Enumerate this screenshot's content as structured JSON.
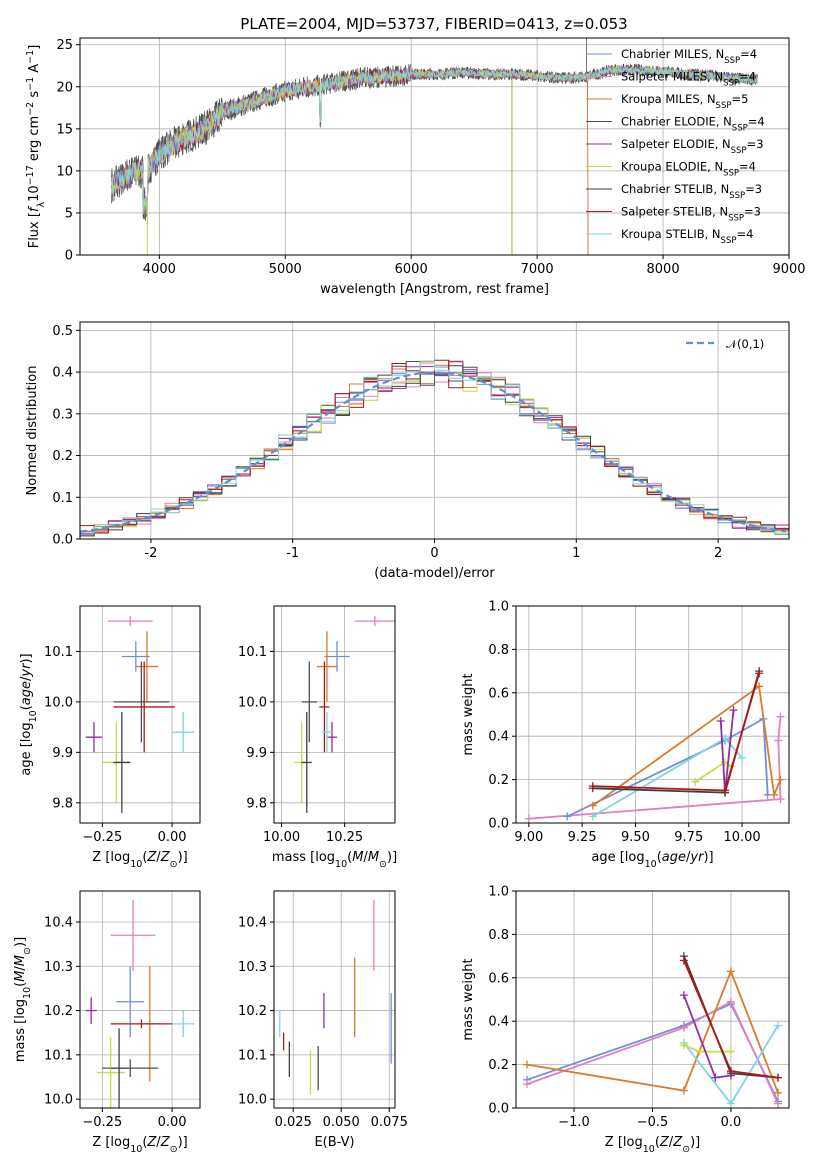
{
  "chart_data": [
    {
      "id": "spectrum",
      "type": "line",
      "title": "PLATE=2004, MJD=53737, FIBERID=0413, z=0.053",
      "xlabel": "wavelength [Angstrom, rest frame]",
      "ylabel": "Flux [fλ10⁻¹⁷ erg cm⁻² s⁻¹ A⁻¹]",
      "xlim": [
        3370,
        9000
      ],
      "ylim": [
        0,
        25.8
      ],
      "xticks": [
        4000,
        5000,
        6000,
        7000,
        8000,
        9000
      ],
      "yticks": [
        0,
        5,
        10,
        15,
        20,
        25
      ],
      "legend_position": "right",
      "legend": [
        {
          "label": "Chabrier MILES, N",
          "n": "4",
          "color": "#6f8fd8"
        },
        {
          "label": "Salpeter MILES, N",
          "n": "4",
          "color": "#e27fbd"
        },
        {
          "label": "Kroupa MILES, N",
          "n": "5",
          "color": "#d97a2c"
        },
        {
          "label": "Chabrier ELODIE, N",
          "n": "4",
          "color": "#4f4f4f"
        },
        {
          "label": "Salpeter ELODIE, N",
          "n": "3",
          "color": "#8e2fa8"
        },
        {
          "label": "Kroupa ELODIE, N",
          "n": "4",
          "color": "#c9d94a"
        },
        {
          "label": "Chabrier STELIB, N",
          "n": "3",
          "color": "#404040"
        },
        {
          "label": "Salpeter STELIB, N",
          "n": "3",
          "color": "#b01818"
        },
        {
          "label": "Kroupa STELIB, N",
          "n": "4",
          "color": "#7fd6de"
        }
      ],
      "continuum": [
        [
          3600,
          8
        ],
        [
          3700,
          9
        ],
        [
          3800,
          10
        ],
        [
          3900,
          10
        ],
        [
          4000,
          12
        ],
        [
          4100,
          13
        ],
        [
          4200,
          14
        ],
        [
          4300,
          14.5
        ],
        [
          4400,
          15.5
        ],
        [
          4500,
          17
        ],
        [
          4600,
          17.5
        ],
        [
          4700,
          18
        ],
        [
          4800,
          18.5
        ],
        [
          4900,
          19
        ],
        [
          5000,
          19.5
        ],
        [
          5200,
          20
        ],
        [
          5400,
          20.5
        ],
        [
          5600,
          21
        ],
        [
          5800,
          21.2
        ],
        [
          6000,
          21.5
        ],
        [
          6200,
          21.5
        ],
        [
          6400,
          21.7
        ],
        [
          6600,
          21.5
        ],
        [
          6800,
          21.5
        ],
        [
          7000,
          21.3
        ],
        [
          7200,
          21
        ],
        [
          7400,
          21.2
        ],
        [
          7600,
          22
        ],
        [
          7800,
          22
        ],
        [
          8000,
          21.8
        ],
        [
          8200,
          21.5
        ],
        [
          8400,
          21.3
        ],
        [
          8600,
          21
        ],
        [
          8750,
          20.8
        ]
      ]
    },
    {
      "id": "residuals",
      "type": "line",
      "xlabel": "(data-model)/error",
      "ylabel": "Normed distribution",
      "xlim": [
        -2.5,
        2.5
      ],
      "ylim": [
        0,
        0.52
      ],
      "xticks": [
        -2,
        -1,
        0,
        1,
        2
      ],
      "yticks": [
        0.0,
        0.1,
        0.2,
        0.3,
        0.4,
        0.5
      ],
      "legend": [
        {
          "label": "𝒩(0,1)",
          "color": "#5b8fd6",
          "style": "dashed"
        }
      ],
      "legend_position": "top-right",
      "histogram_colors": [
        "#6f8fd8",
        "#e27fbd",
        "#d97a2c",
        "#4f4f4f",
        "#8e2fa8",
        "#c9d94a",
        "#404040",
        "#b01818",
        "#7fd6de"
      ],
      "bin_width": 0.1
    },
    {
      "id": "age_vs_Z",
      "type": "scatter",
      "xlabel": "Z [log₁₀(Z/Z⊙)]",
      "ylabel": "age  [log₁₀(age/yr)]",
      "xlim": [
        -0.33,
        0.1
      ],
      "ylim": [
        9.76,
        10.19
      ],
      "xticks": [
        -0.25,
        0.0
      ],
      "xtick_labels": [
        "−0.25",
        "0.00"
      ],
      "yticks": [
        9.8,
        9.9,
        10.0,
        10.1
      ],
      "points": [
        {
          "x": -0.13,
          "y": 10.09,
          "xerr": 0.05,
          "yerr": 0.03,
          "color": "#6f8fd8"
        },
        {
          "x": -0.15,
          "y": 10.16,
          "xerr": 0.08,
          "yerr": 0.01,
          "color": "#e27fbd"
        },
        {
          "x": -0.09,
          "y": 10.07,
          "xerr": 0.04,
          "yerr": 0.07,
          "color": "#d97a2c"
        },
        {
          "x": -0.11,
          "y": 10.0,
          "xerr": 0.1,
          "yerr": 0.08,
          "color": "#4f4f4f"
        },
        {
          "x": -0.28,
          "y": 9.93,
          "xerr": 0.03,
          "yerr": 0.03,
          "color": "#8e2fa8"
        },
        {
          "x": -0.2,
          "y": 9.88,
          "xerr": 0.05,
          "yerr": 0.08,
          "color": "#c9d94a"
        },
        {
          "x": -0.18,
          "y": 9.88,
          "xerr": 0.03,
          "yerr": 0.1,
          "color": "#404040"
        },
        {
          "x": -0.1,
          "y": 9.99,
          "xerr": 0.11,
          "yerr": 0.09,
          "color": "#b01818"
        },
        {
          "x": 0.04,
          "y": 9.94,
          "xerr": 0.04,
          "yerr": 0.04,
          "color": "#7fd6de"
        }
      ]
    },
    {
      "id": "age_vs_mass",
      "type": "scatter",
      "xlabel": "mass [log₁₀(M/M⊙)]",
      "ylabel": "",
      "xlim": [
        9.97,
        10.45
      ],
      "ylim": [
        9.76,
        10.19
      ],
      "xticks": [
        10.0,
        10.25
      ],
      "xtick_labels": [
        "10.00",
        "10.25"
      ],
      "yticks": [
        9.8,
        9.9,
        10.0,
        10.1
      ],
      "points": [
        {
          "x": 10.22,
          "y": 10.09,
          "xerr": 0.05,
          "yerr": 0.03,
          "color": "#6f8fd8"
        },
        {
          "x": 10.37,
          "y": 10.16,
          "xerr": 0.08,
          "yerr": 0.01,
          "color": "#e27fbd"
        },
        {
          "x": 10.18,
          "y": 10.07,
          "xerr": 0.04,
          "yerr": 0.07,
          "color": "#d97a2c"
        },
        {
          "x": 10.11,
          "y": 10.0,
          "xerr": 0.03,
          "yerr": 0.08,
          "color": "#4f4f4f"
        },
        {
          "x": 10.2,
          "y": 9.93,
          "xerr": 0.02,
          "yerr": 0.03,
          "color": "#8e2fa8"
        },
        {
          "x": 10.08,
          "y": 9.88,
          "xerr": 0.03,
          "yerr": 0.08,
          "color": "#c9d94a"
        },
        {
          "x": 10.1,
          "y": 9.88,
          "xerr": 0.02,
          "yerr": 0.1,
          "color": "#404040"
        },
        {
          "x": 10.17,
          "y": 9.99,
          "xerr": 0.02,
          "yerr": 0.09,
          "color": "#b01818"
        },
        {
          "x": 10.18,
          "y": 9.94,
          "xerr": 0.02,
          "yerr": 0.04,
          "color": "#7fd6de"
        }
      ]
    },
    {
      "id": "weight_vs_age",
      "type": "line",
      "xlabel": "age  [log₁₀(age/yr)]",
      "ylabel": "mass weight",
      "xlim": [
        8.94,
        10.22
      ],
      "ylim": [
        0,
        1
      ],
      "xticks": [
        9.0,
        9.25,
        9.5,
        9.75,
        10.0
      ],
      "xtick_labels": [
        "9.00",
        "9.25",
        "9.50",
        "9.75",
        "10.00"
      ],
      "yticks": [
        0.0,
        0.2,
        0.4,
        0.6,
        0.8,
        1.0
      ],
      "series": [
        {
          "color": "#e27fbd",
          "points": [
            [
              9.0,
              0.02
            ],
            [
              10.18,
              0.11
            ],
            [
              10.17,
              0.38
            ],
            [
              10.18,
              0.49
            ]
          ]
        },
        {
          "color": "#6f8fd8",
          "points": [
            [
              9.18,
              0.03
            ],
            [
              9.92,
              0.38
            ],
            [
              10.1,
              0.48
            ],
            [
              10.12,
              0.13
            ]
          ]
        },
        {
          "color": "#d97a2c",
          "points": [
            [
              9.3,
              0.08
            ],
            [
              10.08,
              0.63
            ],
            [
              10.15,
              0.13
            ],
            [
              10.18,
              0.2
            ]
          ]
        },
        {
          "color": "#7fd6de",
          "points": [
            [
              9.3,
              0.03
            ],
            [
              9.92,
              0.39
            ],
            [
              10.0,
              0.3
            ]
          ]
        },
        {
          "color": "#c9d94a",
          "points": [
            [
              9.78,
              0.19
            ],
            [
              9.92,
              0.28
            ],
            [
              9.95,
              0.26
            ]
          ]
        },
        {
          "color": "#8e2fa8",
          "points": [
            [
              9.9,
              0.47
            ],
            [
              9.92,
              0.14
            ],
            [
              9.96,
              0.52
            ]
          ]
        },
        {
          "color": "#404040",
          "points": [
            [
              9.3,
              0.16
            ],
            [
              9.92,
              0.14
            ],
            [
              10.08,
              0.7
            ]
          ]
        },
        {
          "color": "#b01818",
          "points": [
            [
              9.3,
              0.17
            ],
            [
              9.92,
              0.15
            ],
            [
              10.08,
              0.69
            ]
          ]
        }
      ]
    },
    {
      "id": "mass_vs_Z",
      "type": "scatter",
      "xlabel": "Z [log₁₀(Z/Z⊙)]",
      "ylabel": "mass [log₁₀(M/M⊙)]",
      "xlim": [
        -0.33,
        0.1
      ],
      "ylim": [
        9.98,
        10.47
      ],
      "xticks": [
        -0.25,
        0.0
      ],
      "xtick_labels": [
        "−0.25",
        "0.00"
      ],
      "yticks": [
        10.0,
        10.1,
        10.2,
        10.3,
        10.4
      ],
      "points": [
        {
          "x": -0.15,
          "y": 10.22,
          "xerr": 0.05,
          "yerr": 0.08,
          "color": "#6f8fd8"
        },
        {
          "x": -0.14,
          "y": 10.37,
          "xerr": 0.08,
          "yerr": 0.08,
          "color": "#e27fbd"
        },
        {
          "x": -0.08,
          "y": 10.17,
          "xerr": 0.04,
          "yerr": 0.13,
          "color": "#d97a2c"
        },
        {
          "x": -0.15,
          "y": 10.07,
          "xerr": 0.1,
          "yerr": 0.02,
          "color": "#4f4f4f"
        },
        {
          "x": -0.29,
          "y": 10.2,
          "xerr": 0.02,
          "yerr": 0.03,
          "color": "#8e2fa8"
        },
        {
          "x": -0.22,
          "y": 10.06,
          "xerr": 0.05,
          "yerr": 0.08,
          "color": "#c9d94a"
        },
        {
          "x": -0.19,
          "y": 10.07,
          "xerr": 0.03,
          "yerr": 0.09,
          "color": "#404040"
        },
        {
          "x": -0.11,
          "y": 10.17,
          "xerr": 0.11,
          "yerr": 0.01,
          "color": "#b01818"
        },
        {
          "x": 0.04,
          "y": 10.17,
          "xerr": 0.04,
          "yerr": 0.03,
          "color": "#7fd6de"
        }
      ]
    },
    {
      "id": "mass_vs_EBV",
      "type": "scatter",
      "xlabel": "E(B-V)",
      "ylabel": "",
      "xlim": [
        0.015,
        0.078
      ],
      "ylim": [
        9.98,
        10.47
      ],
      "xticks": [
        0.025,
        0.05,
        0.075
      ],
      "xtick_labels": [
        "0.025",
        "0.050",
        "0.075"
      ],
      "yticks": [
        10.0,
        10.1,
        10.2,
        10.3,
        10.4
      ],
      "points": [
        {
          "x": 0.076,
          "y": 10.16,
          "yerr": 0.08,
          "color": "#6f8fd8"
        },
        {
          "x": 0.067,
          "y": 10.37,
          "yerr": 0.08,
          "color": "#e27fbd"
        },
        {
          "x": 0.057,
          "y": 10.23,
          "yerr": 0.09,
          "color": "#d97a2c"
        },
        {
          "x": 0.038,
          "y": 10.07,
          "yerr": 0.05,
          "color": "#4f4f4f"
        },
        {
          "x": 0.041,
          "y": 10.2,
          "yerr": 0.04,
          "color": "#8e2fa8"
        },
        {
          "x": 0.034,
          "y": 10.06,
          "yerr": 0.05,
          "color": "#c9d94a"
        },
        {
          "x": 0.023,
          "y": 10.09,
          "yerr": 0.04,
          "color": "#404040"
        },
        {
          "x": 0.02,
          "y": 10.13,
          "yerr": 0.02,
          "color": "#b01818"
        },
        {
          "x": 0.018,
          "y": 10.17,
          "yerr": 0.03,
          "color": "#7fd6de"
        }
      ]
    },
    {
      "id": "weight_vs_Z",
      "type": "line",
      "xlabel": "Z [log₁₀(Z/Z⊙)]",
      "ylabel": "mass weight",
      "xlim": [
        -1.37,
        0.37
      ],
      "ylim": [
        0,
        1
      ],
      "xticks": [
        -1.0,
        -0.5,
        0.0
      ],
      "xtick_labels": [
        "−1.0",
        "−0.5",
        "0.0"
      ],
      "yticks": [
        0.0,
        0.2,
        0.4,
        0.6,
        0.8,
        1.0
      ],
      "series": [
        {
          "color": "#6f8fd8",
          "points": [
            [
              -1.3,
              0.13
            ],
            [
              -0.3,
              0.38
            ],
            [
              0.0,
              0.48
            ],
            [
              0.3,
              0.03
            ]
          ]
        },
        {
          "color": "#e27fbd",
          "points": [
            [
              -1.3,
              0.11
            ],
            [
              -0.3,
              0.37
            ],
            [
              0.0,
              0.49
            ],
            [
              0.3,
              0.02
            ]
          ]
        },
        {
          "color": "#d97a2c",
          "points": [
            [
              -1.3,
              0.2
            ],
            [
              -0.3,
              0.08
            ],
            [
              0.0,
              0.63
            ],
            [
              0.3,
              0.07
            ]
          ]
        },
        {
          "color": "#7fd6de",
          "points": [
            [
              -0.3,
              0.3
            ],
            [
              0.0,
              0.02
            ],
            [
              0.3,
              0.38
            ]
          ]
        },
        {
          "color": "#c9d94a",
          "points": [
            [
              -0.3,
              0.29
            ],
            [
              -0.2,
              0.26
            ],
            [
              0.0,
              0.26
            ]
          ]
        },
        {
          "color": "#8e2fa8",
          "points": [
            [
              -0.3,
              0.52
            ],
            [
              -0.1,
              0.14
            ],
            [
              0.0,
              0.15
            ]
          ]
        },
        {
          "color": "#404040",
          "points": [
            [
              -0.3,
              0.7
            ],
            [
              0.0,
              0.16
            ],
            [
              0.3,
              0.14
            ]
          ]
        },
        {
          "color": "#b01818",
          "points": [
            [
              -0.3,
              0.68
            ],
            [
              0.0,
              0.17
            ],
            [
              0.3,
              0.14
            ]
          ]
        }
      ]
    }
  ]
}
